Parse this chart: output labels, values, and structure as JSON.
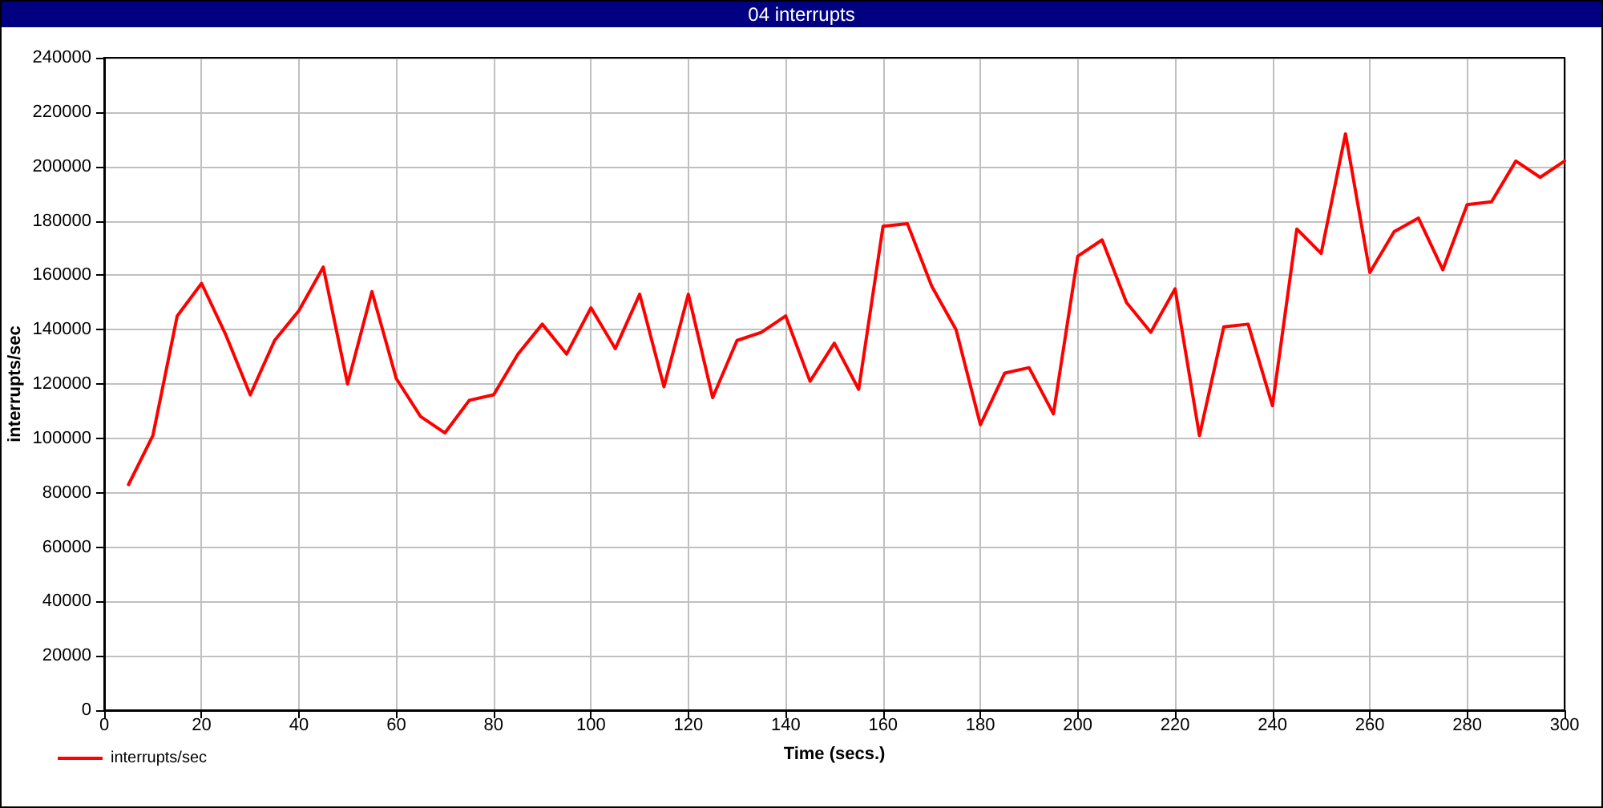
{
  "chart_data": {
    "type": "line",
    "title": "04 interrupts",
    "xlabel": "Time (secs.)",
    "ylabel": "interrupts/sec",
    "x": [
      5,
      10,
      15,
      20,
      25,
      30,
      35,
      40,
      45,
      50,
      55,
      60,
      65,
      70,
      75,
      80,
      85,
      90,
      95,
      100,
      105,
      110,
      115,
      120,
      125,
      130,
      135,
      140,
      145,
      150,
      155,
      160,
      165,
      170,
      175,
      180,
      185,
      190,
      195,
      200,
      205,
      210,
      215,
      220,
      225,
      230,
      235,
      240,
      245,
      250,
      255,
      260,
      265,
      270,
      275,
      280,
      285,
      290,
      295,
      300
    ],
    "series": [
      {
        "name": "interrupts/sec",
        "color": "#ff0000",
        "values": [
          83000,
          101000,
          145000,
          157000,
          138000,
          116000,
          136000,
          147000,
          163000,
          120000,
          154000,
          122000,
          108000,
          102000,
          114000,
          116000,
          131000,
          142000,
          131000,
          148000,
          133000,
          153000,
          119000,
          153000,
          115000,
          136000,
          139000,
          145000,
          121000,
          135000,
          118000,
          178000,
          179000,
          156000,
          140000,
          105000,
          124000,
          126000,
          109000,
          167000,
          173000,
          150000,
          139000,
          155000,
          101000,
          141000,
          142000,
          112000,
          177000,
          168000,
          212000,
          161000,
          176000,
          181000,
          162000,
          186000,
          187000,
          202000,
          196000,
          202000
        ]
      }
    ],
    "xlim": [
      0,
      300
    ],
    "xticks": [
      0,
      20,
      40,
      60,
      80,
      100,
      120,
      140,
      160,
      180,
      200,
      220,
      240,
      260,
      280,
      300
    ],
    "ylim": [
      0,
      240000
    ],
    "yticks": [
      0,
      20000,
      40000,
      60000,
      80000,
      100000,
      120000,
      140000,
      160000,
      180000,
      200000,
      220000,
      240000
    ],
    "grid": true,
    "legend": "bottom left",
    "marker": "none",
    "line_style": "solid"
  }
}
